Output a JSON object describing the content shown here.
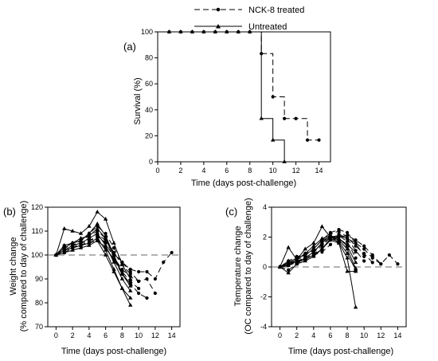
{
  "legend": {
    "items": [
      {
        "label": "NCK-8 treated",
        "style": "dashed",
        "marker": "circle"
      },
      {
        "label": "Untreated",
        "style": "solid",
        "marker": "triangle"
      }
    ]
  },
  "chart_data": [
    {
      "panel": "(a)",
      "type": "line",
      "step": true,
      "xlabel": "Time (days post-challenge)",
      "ylabel": "Survival (%)",
      "xlim": [
        0,
        15
      ],
      "ylim": [
        0,
        100
      ],
      "xticks": [
        0,
        2,
        4,
        6,
        8,
        10,
        12,
        14
      ],
      "yticks": [
        0,
        20,
        40,
        60,
        80,
        100
      ],
      "grid": false,
      "series": [
        {
          "name": "NCK-8 treated",
          "x": [
            1,
            2,
            3,
            4,
            5,
            6,
            7,
            8,
            9,
            10,
            11,
            12,
            13,
            14
          ],
          "y": [
            100,
            100,
            100,
            100,
            100,
            100,
            100,
            100,
            83.3,
            50,
            33.3,
            33.3,
            16.7,
            16.7
          ]
        },
        {
          "name": "Untreated",
          "x": [
            1,
            2,
            3,
            4,
            5,
            6,
            7,
            8,
            9,
            10,
            11
          ],
          "y": [
            100,
            100,
            100,
            100,
            100,
            100,
            100,
            100,
            33.3,
            16.7,
            0
          ]
        }
      ]
    },
    {
      "panel": "(b)",
      "type": "line",
      "xlabel": "Time (days post-challenge)",
      "ylabel": "Weight change",
      "ylabel2": "(% compared to day of challenge)",
      "xlim": [
        -1,
        15
      ],
      "ylim": [
        70,
        120
      ],
      "xticks": [
        0,
        2,
        4,
        6,
        8,
        10,
        12,
        14
      ],
      "yticks": [
        70,
        80,
        90,
        100,
        110,
        120
      ],
      "reference_line": 100,
      "grid": false,
      "series": [
        {
          "group": "NCK-8 treated",
          "x": [
            0,
            1,
            2,
            3,
            4,
            5,
            6,
            7,
            8,
            9,
            10,
            11,
            12,
            13,
            14
          ],
          "y": [
            100,
            103,
            104,
            105,
            107,
            109,
            106,
            101,
            97,
            94,
            93,
            93,
            90,
            97,
            101
          ]
        },
        {
          "group": "NCK-8 treated",
          "x": [
            0,
            1,
            2,
            3,
            4,
            5,
            6,
            7,
            8,
            9,
            10,
            11,
            12
          ],
          "y": [
            100,
            102,
            103,
            105,
            106,
            108,
            105,
            99,
            94,
            91,
            89,
            90,
            84
          ]
        },
        {
          "group": "NCK-8 treated",
          "x": [
            0,
            1,
            2,
            3,
            4,
            5,
            6,
            7,
            8,
            9,
            10,
            11
          ],
          "y": [
            100,
            101,
            103,
            104,
            105,
            106,
            103,
            98,
            92,
            88,
            84,
            82
          ]
        },
        {
          "group": "NCK-8 treated",
          "x": [
            0,
            1,
            2,
            3,
            4,
            5,
            6,
            7,
            8,
            9,
            10
          ],
          "y": [
            100,
            104,
            105,
            106,
            109,
            112,
            109,
            103,
            97,
            93,
            89
          ]
        },
        {
          "group": "NCK-8 treated",
          "x": [
            0,
            1,
            2,
            3,
            4,
            5,
            6,
            7,
            8,
            9,
            10
          ],
          "y": [
            100,
            102,
            103,
            104,
            106,
            107,
            103,
            98,
            93,
            89,
            86
          ]
        },
        {
          "group": "NCK-8 treated",
          "x": [
            0,
            1,
            2,
            3,
            4,
            5,
            6,
            7,
            8,
            9
          ],
          "y": [
            100,
            103,
            104,
            106,
            108,
            110,
            107,
            101,
            96,
            92
          ]
        },
        {
          "group": "Untreated",
          "x": [
            0,
            1,
            2,
            3,
            4,
            5,
            6,
            7,
            8,
            9
          ],
          "y": [
            100,
            111,
            110,
            109,
            112,
            118,
            115,
            105,
            96,
            90
          ]
        },
        {
          "group": "Untreated",
          "x": [
            0,
            1,
            2,
            3,
            4,
            5,
            6,
            7,
            8,
            9
          ],
          "y": [
            100,
            104,
            105,
            107,
            108,
            111,
            107,
            99,
            92,
            87
          ]
        },
        {
          "group": "Untreated",
          "x": [
            0,
            1,
            2,
            3,
            4,
            5,
            6,
            7,
            8,
            9
          ],
          "y": [
            100,
            102,
            104,
            105,
            107,
            109,
            104,
            97,
            90,
            85
          ]
        },
        {
          "group": "Untreated",
          "x": [
            0,
            1,
            2,
            3,
            4,
            5,
            6,
            7,
            8,
            9
          ],
          "y": [
            100,
            103,
            105,
            106,
            109,
            113,
            108,
            100,
            92,
            88
          ]
        },
        {
          "group": "Untreated",
          "x": [
            0,
            1,
            2,
            3,
            4,
            5,
            6,
            7,
            8,
            9
          ],
          "y": [
            100,
            101,
            102,
            103,
            104,
            106,
            100,
            93,
            86,
            82
          ]
        },
        {
          "group": "Untreated",
          "x": [
            0,
            1,
            2,
            3,
            4,
            5,
            6,
            7,
            8,
            9
          ],
          "y": [
            100,
            102,
            103,
            104,
            105,
            107,
            102,
            94,
            86,
            79
          ]
        }
      ]
    },
    {
      "panel": "(c)",
      "type": "line",
      "xlabel": "Time (days post-challenge)",
      "ylabel": "Temperature change",
      "ylabel2": "(OC compared to day of challenge)",
      "xlim": [
        -1,
        15
      ],
      "ylim": [
        -4,
        4
      ],
      "xticks": [
        0,
        2,
        4,
        6,
        8,
        10,
        12,
        14
      ],
      "yticks": [
        -4,
        -2,
        0,
        2,
        4
      ],
      "reference_line": 0,
      "grid": false,
      "series": [
        {
          "group": "NCK-8 treated",
          "x": [
            0,
            1,
            2,
            3,
            4,
            5,
            6,
            7,
            8,
            9,
            10,
            11,
            12,
            13,
            14
          ],
          "y": [
            0,
            0.2,
            0.4,
            0.6,
            1.0,
            1.4,
            2.0,
            2.1,
            1.9,
            1.6,
            1.2,
            0.6,
            0.2,
            0.8,
            0.2
          ]
        },
        {
          "group": "NCK-8 treated",
          "x": [
            0,
            1,
            2,
            3,
            4,
            5,
            6,
            7,
            8,
            9,
            10,
            11,
            12
          ],
          "y": [
            0,
            0.1,
            0.3,
            0.5,
            0.9,
            1.2,
            1.8,
            2.0,
            2.1,
            1.8,
            1.4,
            0.8,
            0.2
          ]
        },
        {
          "group": "NCK-8 treated",
          "x": [
            0,
            1,
            2,
            3,
            4,
            5,
            6,
            7,
            8,
            9,
            10,
            11
          ],
          "y": [
            0,
            -0.2,
            0.2,
            0.6,
            1.0,
            1.6,
            2.2,
            2.4,
            2.0,
            1.4,
            0.9,
            0.3
          ]
        },
        {
          "group": "NCK-8 treated",
          "x": [
            0,
            1,
            2,
            3,
            4,
            5,
            6,
            7,
            8,
            9,
            10
          ],
          "y": [
            0,
            0.3,
            0.6,
            0.9,
            1.2,
            1.8,
            2.3,
            2.5,
            2.3,
            1.6,
            0.7
          ]
        },
        {
          "group": "NCK-8 treated",
          "x": [
            0,
            1,
            2,
            3,
            4,
            5,
            6,
            7,
            8,
            9,
            10
          ],
          "y": [
            0,
            0.2,
            0.5,
            0.7,
            0.8,
            1.0,
            1.5,
            2.2,
            1.9,
            1.1,
            0.4
          ]
        },
        {
          "group": "NCK-8 treated",
          "x": [
            0,
            1,
            2,
            3,
            4,
            5,
            6,
            7,
            8,
            9
          ],
          "y": [
            0,
            0.4,
            0.7,
            0.8,
            1.1,
            1.5,
            2.0,
            2.1,
            1.7,
            0.6
          ]
        },
        {
          "group": "Untreated",
          "x": [
            0,
            1,
            2,
            3,
            4,
            5,
            6,
            7,
            8,
            9
          ],
          "y": [
            0,
            1.3,
            0.5,
            1.2,
            1.6,
            2.7,
            2.0,
            1.9,
            1.5,
            1.0
          ]
        },
        {
          "group": "Untreated",
          "x": [
            0,
            1,
            2,
            3,
            4,
            5,
            6,
            7,
            8,
            9
          ],
          "y": [
            0,
            0.4,
            0.3,
            0.6,
            1.0,
            1.6,
            2.1,
            1.9,
            1.4,
            0.3
          ]
        },
        {
          "group": "Untreated",
          "x": [
            0,
            1,
            2,
            3,
            4,
            5,
            6,
            7,
            8,
            9
          ],
          "y": [
            0,
            0.3,
            0.6,
            0.8,
            1.2,
            1.8,
            2.0,
            1.8,
            1.2,
            -0.1
          ]
        },
        {
          "group": "Untreated",
          "x": [
            0,
            1,
            2,
            3,
            4,
            5,
            6,
            7,
            8,
            9
          ],
          "y": [
            0,
            0.1,
            0.4,
            0.5,
            0.8,
            1.2,
            1.9,
            1.7,
            0.9,
            -0.2
          ]
        },
        {
          "group": "Untreated",
          "x": [
            0,
            1,
            2,
            3,
            4,
            5,
            6,
            7,
            8,
            9
          ],
          "y": [
            0,
            0.2,
            0.5,
            0.9,
            1.4,
            1.9,
            2.1,
            1.6,
            -0.3,
            -0.3
          ]
        },
        {
          "group": "Untreated",
          "x": [
            0,
            1,
            2,
            3,
            4,
            5,
            6,
            7,
            8,
            9
          ],
          "y": [
            0,
            -0.4,
            0.2,
            0.4,
            0.7,
            1.2,
            1.8,
            1.6,
            0.6,
            -2.7
          ]
        }
      ]
    }
  ]
}
